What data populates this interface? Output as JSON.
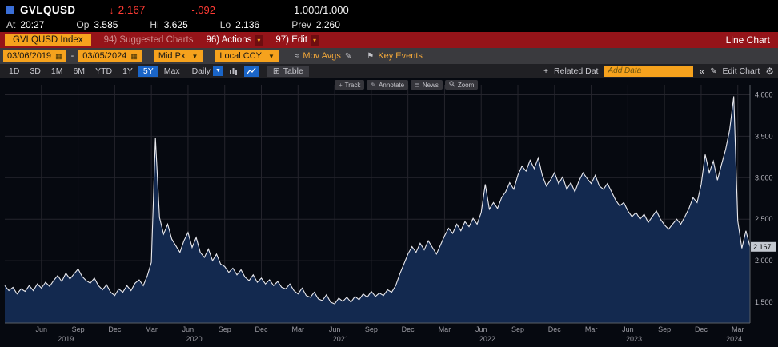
{
  "quote": {
    "ticker": "GVLQUSD",
    "direction": "↓",
    "last": "2.167",
    "change": "-.092",
    "size": "1.000/1.000",
    "stats": [
      {
        "label": "At",
        "value": "20:27"
      },
      {
        "label": "Op",
        "value": "3.585"
      },
      {
        "label": "Hi",
        "value": "3.625"
      },
      {
        "label": "Lo",
        "value": "2.136"
      },
      {
        "label": "Prev",
        "value": "2.260"
      }
    ]
  },
  "menubar": {
    "security_box": "GVLQUSD Index",
    "suggested_charts": "94) Suggested Charts",
    "actions": "96) Actions",
    "edit": "97) Edit",
    "view_title": "Line Chart"
  },
  "filters": {
    "date_from": "03/06/2019",
    "date_separator": "-",
    "date_to": "03/05/2024",
    "price_source": "Mid Px",
    "currency": "Local CCY",
    "mov_avgs_label": "Mov Avgs",
    "key_events_label": "Key Events"
  },
  "chart_toolbar": {
    "periods": [
      "1D",
      "3D",
      "1M",
      "6M",
      "YTD",
      "1Y",
      "5Y",
      "Max"
    ],
    "selected_period": "5Y",
    "frequency": "Daily",
    "table_label": "Table",
    "overlay_buttons": [
      "Track",
      "Annotate",
      "News",
      "Zoom"
    ],
    "related_data_label": "Related Dat",
    "add_data_placeholder": "Add Data",
    "collapse_glyph": "«",
    "edit_chart_label": "Edit Chart"
  },
  "chart_data": {
    "type": "area",
    "title": "GVLQUSD Index, 5Y daily, Mid Px, Local CCY",
    "x_unit": "months since 2019-03",
    "x_range": [
      0,
      61
    ],
    "ylim": [
      1.25,
      4.12
    ],
    "yticks": [
      1.5,
      2.0,
      2.5,
      3.0,
      3.5,
      4.0
    ],
    "ytick_labels": [
      "1.500",
      "2.000",
      "2.500",
      "3.000",
      "3.500",
      "4.000"
    ],
    "last_price": 2.167,
    "last_price_label": "2.167",
    "month_tick_positions": [
      3,
      6,
      9,
      12,
      15,
      18,
      21,
      24,
      27,
      30,
      33,
      36,
      39,
      42,
      45,
      48,
      51,
      54,
      57,
      60
    ],
    "month_tick_labels": [
      "Jun",
      "Sep",
      "Dec",
      "Mar",
      "Jun",
      "Sep",
      "Dec",
      "Mar",
      "Jun",
      "Sep",
      "Dec",
      "Mar",
      "Jun",
      "Sep",
      "Dec",
      "Mar",
      "Jun",
      "Sep",
      "Dec",
      "Mar"
    ],
    "year_labels": [
      {
        "label": "2019",
        "month": 5
      },
      {
        "label": "2020",
        "month": 15.5
      },
      {
        "label": "2021",
        "month": 27.5
      },
      {
        "label": "2022",
        "month": 39.5
      },
      {
        "label": "2023",
        "month": 51.5
      },
      {
        "label": "2024",
        "month": 59.7
      }
    ],
    "values": [
      1.7,
      1.64,
      1.68,
      1.6,
      1.66,
      1.63,
      1.7,
      1.64,
      1.72,
      1.67,
      1.74,
      1.69,
      1.76,
      1.82,
      1.75,
      1.85,
      1.78,
      1.84,
      1.9,
      1.81,
      1.76,
      1.73,
      1.79,
      1.7,
      1.65,
      1.71,
      1.62,
      1.58,
      1.66,
      1.62,
      1.7,
      1.64,
      1.73,
      1.77,
      1.7,
      1.82,
      1.98,
      3.48,
      2.52,
      2.32,
      2.44,
      2.26,
      2.18,
      2.1,
      2.24,
      2.34,
      2.16,
      2.28,
      2.1,
      2.04,
      2.14,
      2.0,
      2.08,
      1.96,
      1.93,
      1.86,
      1.91,
      1.83,
      1.89,
      1.8,
      1.76,
      1.83,
      1.74,
      1.79,
      1.72,
      1.77,
      1.7,
      1.75,
      1.68,
      1.66,
      1.72,
      1.64,
      1.6,
      1.67,
      1.58,
      1.56,
      1.62,
      1.54,
      1.52,
      1.59,
      1.5,
      1.48,
      1.55,
      1.51,
      1.56,
      1.5,
      1.57,
      1.53,
      1.6,
      1.56,
      1.63,
      1.57,
      1.61,
      1.58,
      1.65,
      1.62,
      1.7,
      1.84,
      1.96,
      2.08,
      2.17,
      2.1,
      2.21,
      2.13,
      2.24,
      2.16,
      2.08,
      2.19,
      2.3,
      2.39,
      2.33,
      2.44,
      2.36,
      2.47,
      2.41,
      2.51,
      2.44,
      2.58,
      2.92,
      2.62,
      2.7,
      2.63,
      2.76,
      2.83,
      2.94,
      2.86,
      3.03,
      3.14,
      3.08,
      3.21,
      3.11,
      3.24,
      3.03,
      2.9,
      2.97,
      3.06,
      2.93,
      3.01,
      2.86,
      2.94,
      2.83,
      2.96,
      3.06,
      2.99,
      2.93,
      3.03,
      2.9,
      2.86,
      2.93,
      2.83,
      2.73,
      2.66,
      2.7,
      2.6,
      2.53,
      2.58,
      2.5,
      2.56,
      2.46,
      2.53,
      2.6,
      2.5,
      2.43,
      2.38,
      2.44,
      2.5,
      2.44,
      2.53,
      2.63,
      2.76,
      2.7,
      2.92,
      3.28,
      3.06,
      3.2,
      2.97,
      3.16,
      3.34,
      3.58,
      3.98,
      2.48,
      2.15,
      2.36,
      2.167
    ],
    "line_color": "#e9e9ee",
    "fill_color": "#13294f",
    "grid_color": "#25252d",
    "axis_edge_color": "#5a5e66",
    "background": "#060910"
  }
}
